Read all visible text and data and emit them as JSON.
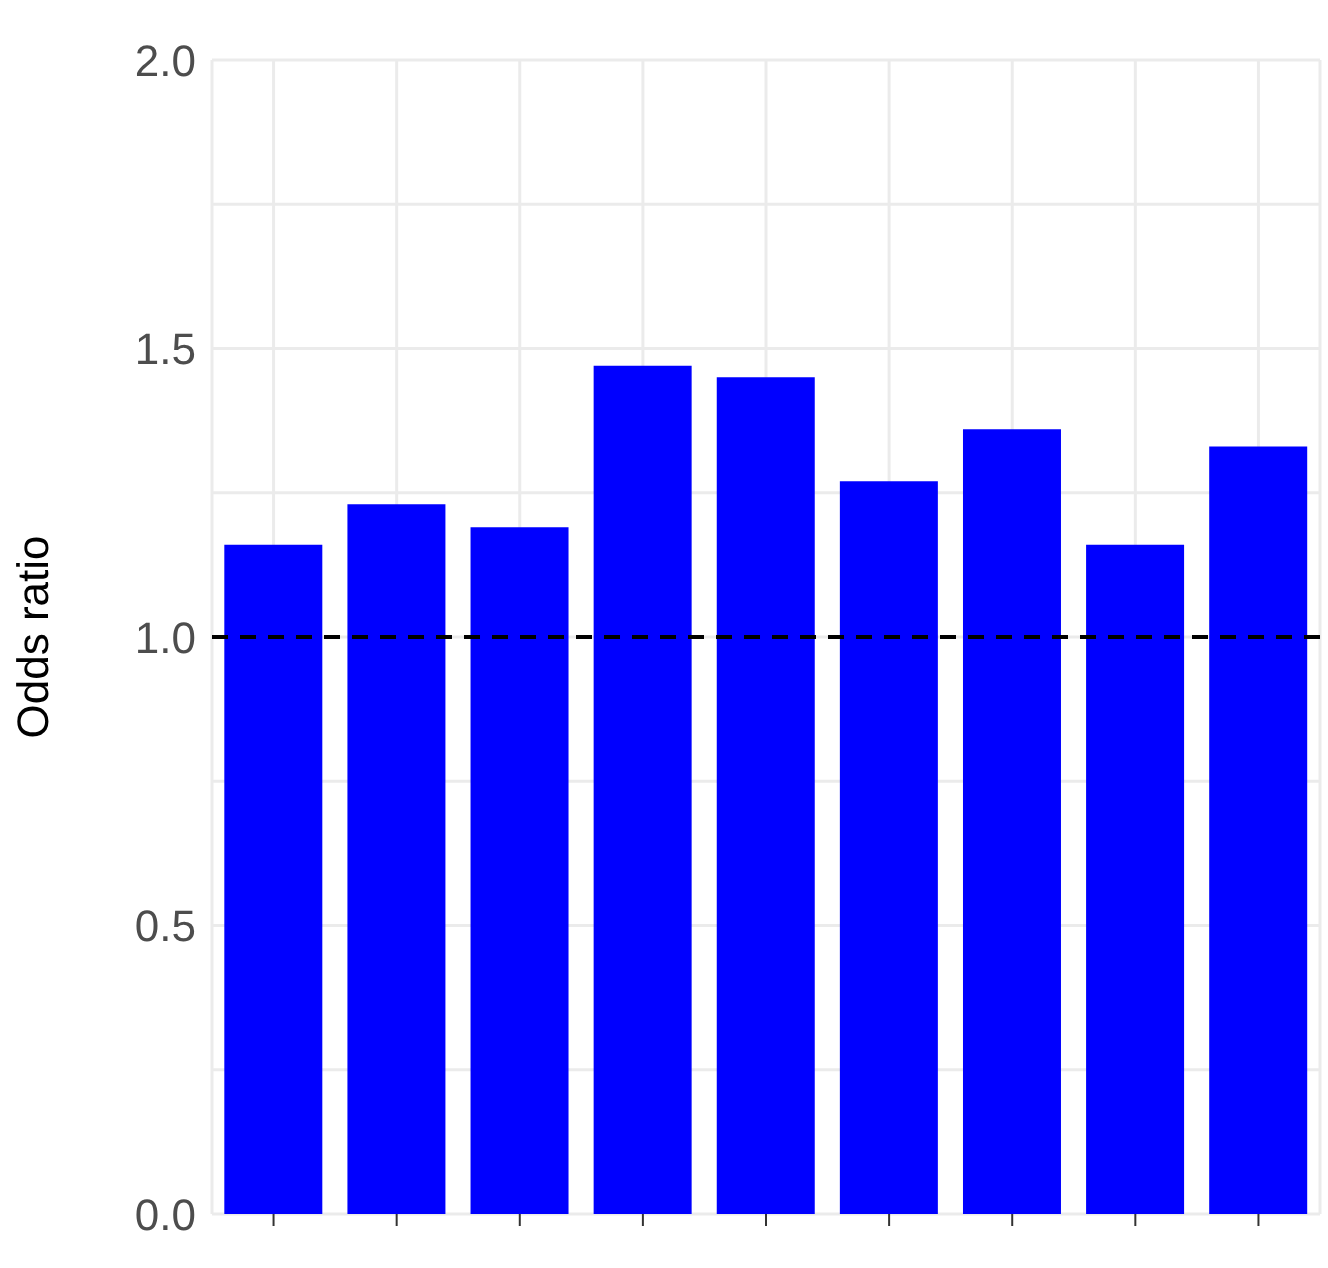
{
  "chart_data": {
    "type": "bar",
    "ylabel": "Odds ratio",
    "categories": [
      null,
      null,
      null,
      null,
      null,
      null,
      null,
      null,
      null
    ],
    "values": [
      1.16,
      1.23,
      1.19,
      1.47,
      1.45,
      1.27,
      1.36,
      1.16,
      1.33
    ],
    "color": "#0000ff",
    "ylim": [
      0,
      2
    ],
    "yticks": [
      {
        "value": 0,
        "label": "0.0"
      },
      {
        "value": 0.25,
        "label": null
      },
      0.5,
      {
        "value": 0.75,
        "label": null
      },
      {
        "value": 1,
        "label": "1.0"
      },
      {
        "value": 1.25,
        "label": null
      },
      1.5,
      {
        "value": 1.75,
        "label": null
      },
      {
        "value": 2,
        "label": "2.0"
      }
    ],
    "ref_lines": [
      {
        "axis": "y",
        "value": 1,
        "color": "#000000",
        "line_style": "dashed"
      }
    ],
    "grid": true
  }
}
